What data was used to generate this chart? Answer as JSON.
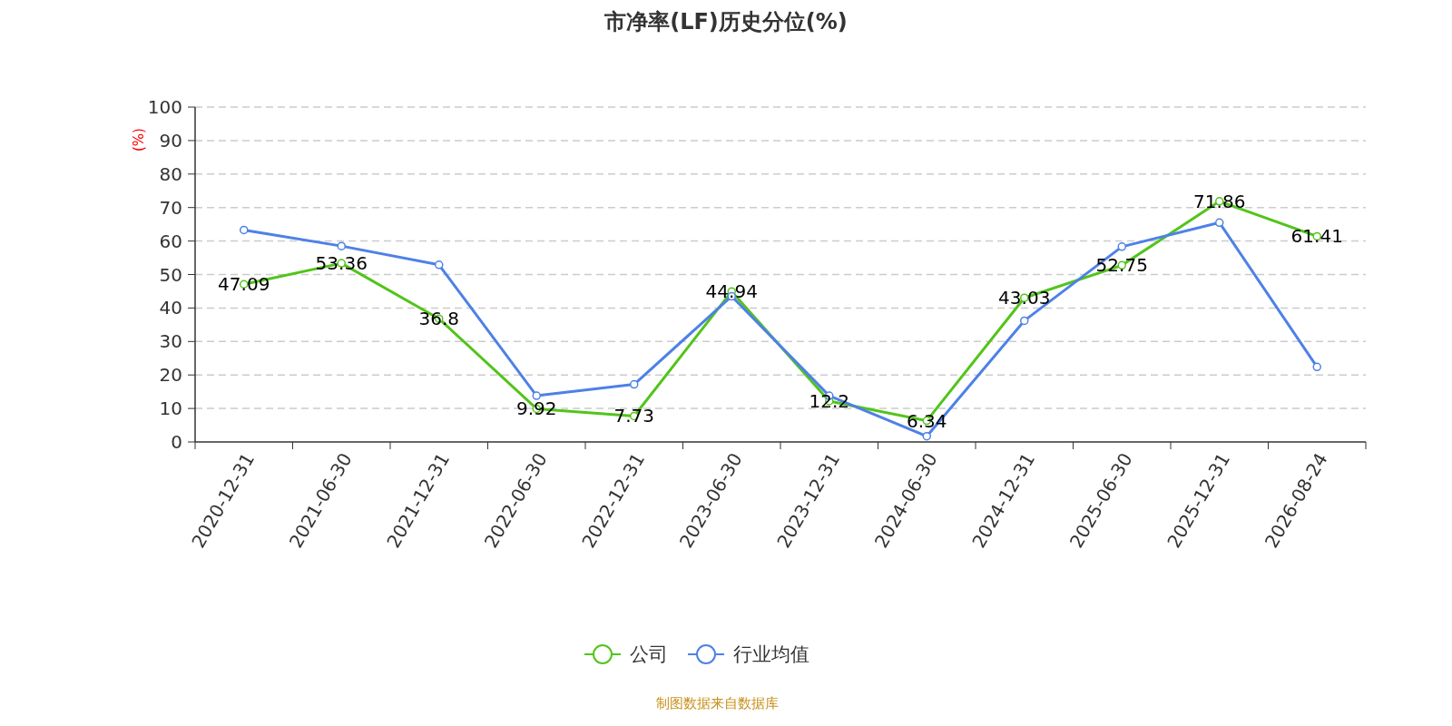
{
  "chart_data": {
    "type": "line",
    "title": "市净率(LF)历史分位(%)",
    "ylabel": "(%)",
    "categories": [
      "2020-12-31",
      "2021-06-30",
      "2021-12-31",
      "2022-06-30",
      "2022-12-31",
      "2023-06-30",
      "2023-12-31",
      "2024-06-30",
      "2024-12-31",
      "2025-06-30",
      "2025-12-31",
      "2026-08-24"
    ],
    "series": [
      {
        "name": "公司",
        "color": "#52c41a",
        "values": [
          47.09,
          53.36,
          36.8,
          9.92,
          7.73,
          44.94,
          12.2,
          6.34,
          43.03,
          52.75,
          71.86,
          61.41
        ],
        "value_labels": [
          "47.09",
          "53.36",
          "36.8",
          "9.92",
          "7.73",
          "44.94",
          "12.2",
          "6.34",
          "43.03",
          "52.75",
          "71.86",
          "61.41"
        ]
      },
      {
        "name": "行业均值",
        "color": "#4e81e6",
        "values": [
          63.3,
          58.5,
          52.9,
          13.8,
          17.2,
          43.5,
          13.8,
          1.7,
          36.2,
          58.3,
          65.5,
          22.4
        ]
      }
    ],
    "ylim": [
      0,
      100
    ],
    "yticks": [
      0,
      10,
      20,
      30,
      40,
      50,
      60,
      70,
      80,
      90,
      100
    ],
    "grid": "y",
    "legend": "bottom",
    "marker": "circle",
    "line_style": "solid",
    "annotations": [
      "制图数据来自数据库"
    ]
  }
}
